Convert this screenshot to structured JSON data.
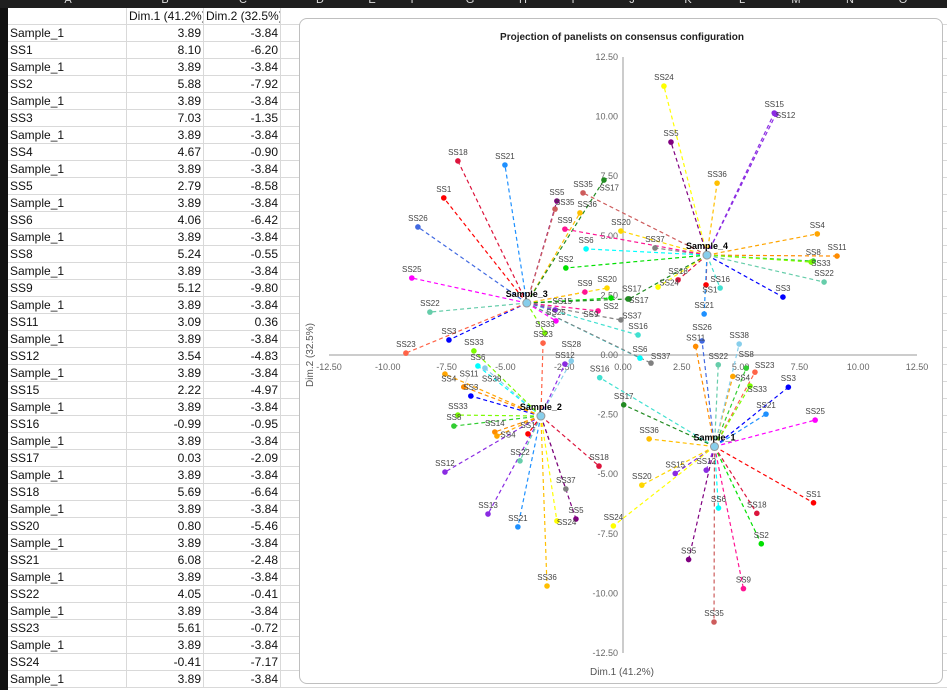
{
  "columns": [
    "A",
    "B",
    "C",
    "D",
    "E",
    "F",
    "G",
    "H",
    "I",
    "J",
    "K",
    "L",
    "M",
    "N",
    "O"
  ],
  "table": {
    "headers": [
      "",
      "Dim.1 (41.2%)",
      "Dim.2 (32.5%)"
    ],
    "rows": [
      [
        "Sample_1",
        "3.89",
        "-3.84"
      ],
      [
        "SS1",
        "8.10",
        "-6.20"
      ],
      [
        "Sample_1",
        "3.89",
        "-3.84"
      ],
      [
        "SS2",
        "5.88",
        "-7.92"
      ],
      [
        "Sample_1",
        "3.89",
        "-3.84"
      ],
      [
        "SS3",
        "7.03",
        "-1.35"
      ],
      [
        "Sample_1",
        "3.89",
        "-3.84"
      ],
      [
        "SS4",
        "4.67",
        "-0.90"
      ],
      [
        "Sample_1",
        "3.89",
        "-3.84"
      ],
      [
        "SS5",
        "2.79",
        "-8.58"
      ],
      [
        "Sample_1",
        "3.89",
        "-3.84"
      ],
      [
        "SS6",
        "4.06",
        "-6.42"
      ],
      [
        "Sample_1",
        "3.89",
        "-3.84"
      ],
      [
        "SS8",
        "5.24",
        "-0.55"
      ],
      [
        "Sample_1",
        "3.89",
        "-3.84"
      ],
      [
        "SS9",
        "5.12",
        "-9.80"
      ],
      [
        "Sample_1",
        "3.89",
        "-3.84"
      ],
      [
        "SS11",
        "3.09",
        "0.36"
      ],
      [
        "Sample_1",
        "3.89",
        "-3.84"
      ],
      [
        "SS12",
        "3.54",
        "-4.83"
      ],
      [
        "Sample_1",
        "3.89",
        "-3.84"
      ],
      [
        "SS15",
        "2.22",
        "-4.97"
      ],
      [
        "Sample_1",
        "3.89",
        "-3.84"
      ],
      [
        "SS16",
        "-0.99",
        "-0.95"
      ],
      [
        "Sample_1",
        "3.89",
        "-3.84"
      ],
      [
        "SS17",
        "0.03",
        "-2.09"
      ],
      [
        "Sample_1",
        "3.89",
        "-3.84"
      ],
      [
        "SS18",
        "5.69",
        "-6.64"
      ],
      [
        "Sample_1",
        "3.89",
        "-3.84"
      ],
      [
        "SS20",
        "0.80",
        "-5.46"
      ],
      [
        "Sample_1",
        "3.89",
        "-3.84"
      ],
      [
        "SS21",
        "6.08",
        "-2.48"
      ],
      [
        "Sample_1",
        "3.89",
        "-3.84"
      ],
      [
        "SS22",
        "4.05",
        "-0.41"
      ],
      [
        "Sample_1",
        "3.89",
        "-3.84"
      ],
      [
        "SS23",
        "5.61",
        "-0.72"
      ],
      [
        "Sample_1",
        "3.89",
        "-3.84"
      ],
      [
        "SS24",
        "-0.41",
        "-7.17"
      ],
      [
        "Sample_1",
        "3.89",
        "-3.84"
      ]
    ]
  },
  "chart_data": {
    "type": "scatter",
    "title": "Projection of panelists on consensus configuration",
    "xlabel": "Dim.1 (41.2%)",
    "ylabel": "Dim.2 (32.5%)",
    "xlim": [
      -12.5,
      12.5
    ],
    "ylim": [
      -12.5,
      12.5
    ],
    "ticks": [
      "-12.50",
      "-10.00",
      "-7.50",
      "-5.00",
      "-2.50",
      "0.00",
      "2.50",
      "5.00",
      "7.50",
      "10.00",
      "12.50"
    ],
    "grid": false,
    "colors": {
      "SS1": "#ff0000",
      "SS2": "#00e000",
      "SS3": "#0000ff",
      "SS4": "#ffa500",
      "SS5": "#800080",
      "SS6": "#00ffff",
      "SS8": "#32cd32",
      "SS9": "#ff1493",
      "SS11": "#ff8c00",
      "SS12": "#8a2be2",
      "SS13": "#8a2be2",
      "SS14": "#ff8c00",
      "SS15": "#8a2be2",
      "SS16": "#40e0d0",
      "SS17": "#228b22",
      "SS18": "#dc143c",
      "SS20": "#ffd700",
      "SS21": "#1e90ff",
      "SS22": "#66cdaa",
      "SS23": "#ff6347",
      "SS24": "#ffff00",
      "SS25": "#ff00ff",
      "SS26": "#4169e1",
      "SS28": "#87ceeb",
      "SS33": "#7cfc00",
      "SS35": "#cd5c5c",
      "SS36": "#ffbf00",
      "SS37": "#808080",
      "SS38": "#87ceeb"
    },
    "samples": [
      {
        "name": "Sample_1",
        "x": 3.89,
        "y": -3.84,
        "points": [
          [
            "SS1",
            8.1,
            -6.2
          ],
          [
            "SS2",
            5.88,
            -7.92
          ],
          [
            "SS3",
            7.03,
            -1.35
          ],
          [
            "SS4",
            4.67,
            -0.9
          ],
          [
            "SS5",
            2.79,
            -8.58
          ],
          [
            "SS6",
            4.06,
            -6.42
          ],
          [
            "SS8",
            5.24,
            -0.55
          ],
          [
            "SS9",
            5.12,
            -9.8
          ],
          [
            "SS11",
            3.09,
            0.36
          ],
          [
            "SS12",
            3.54,
            -4.83
          ],
          [
            "SS15",
            2.22,
            -4.97
          ],
          [
            "SS16",
            -0.99,
            -0.95
          ],
          [
            "SS17",
            0.03,
            -2.09
          ],
          [
            "SS18",
            5.69,
            -6.64
          ],
          [
            "SS20",
            0.8,
            -5.46
          ],
          [
            "SS21",
            6.08,
            -2.48
          ],
          [
            "SS22",
            4.05,
            -0.41
          ],
          [
            "SS23",
            5.61,
            -0.72
          ],
          [
            "SS24",
            -0.41,
            -7.17
          ],
          [
            "SS25",
            8.17,
            -2.73
          ],
          [
            "SS35",
            3.87,
            -11.2
          ],
          [
            "SS36",
            1.11,
            -3.52
          ],
          [
            "SS38",
            4.94,
            0.46
          ],
          [
            "SS26",
            3.36,
            0.59
          ],
          [
            "SS33",
            5.4,
            -1.3
          ]
        ]
      },
      {
        "name": "Sample_2",
        "x": -3.49,
        "y": -2.56,
        "points": [
          [
            "SS12",
            -7.57,
            -4.91
          ],
          [
            "SS13",
            -5.74,
            -6.67
          ],
          [
            "SS21",
            -4.47,
            -7.21
          ],
          [
            "SS22",
            -4.38,
            -4.44
          ],
          [
            "SS1",
            -4.04,
            -3.31
          ],
          [
            "SS8",
            -7.19,
            -2.98
          ],
          [
            "SS14",
            -5.45,
            -3.23
          ],
          [
            "SS4",
            -5.36,
            -3.4
          ],
          [
            "SS33",
            -7.02,
            -2.52
          ],
          [
            "SS3",
            -6.47,
            -1.72
          ],
          [
            "SS11",
            -6.77,
            -1.34
          ],
          [
            "SS4",
            -7.57,
            -0.8
          ],
          [
            "SS6",
            -6.17,
            -0.46
          ],
          [
            "SS38",
            -5.87,
            -0.55
          ],
          [
            "SS33",
            -6.34,
            0.17
          ],
          [
            "SS18",
            -1.02,
            -4.66
          ],
          [
            "SS37",
            -2.43,
            -5.62
          ],
          [
            "SS5",
            -2.0,
            -6.88
          ],
          [
            "SS24",
            -2.81,
            -6.96
          ],
          [
            "SS36",
            -3.23,
            -9.69
          ],
          [
            "SS12",
            -2.47,
            -0.38
          ],
          [
            "SS28",
            -2.2,
            -0.25
          ],
          [
            "SS23",
            -3.4,
            0.5
          ]
        ]
      },
      {
        "name": "Sample_3",
        "x": -4.09,
        "y": 2.18,
        "points": [
          [
            "SS18",
            -7.02,
            8.14
          ],
          [
            "SS21",
            -5.02,
            7.97
          ],
          [
            "SS1",
            -7.62,
            6.59
          ],
          [
            "SS26",
            -8.72,
            5.37
          ],
          [
            "SS25",
            -8.98,
            3.23
          ],
          [
            "SS22",
            -8.21,
            1.8
          ],
          [
            "SS3",
            -7.4,
            0.63
          ],
          [
            "SS23",
            -9.23,
            0.08
          ],
          [
            "SS5",
            -2.81,
            6.46
          ],
          [
            "SS35",
            -2.89,
            6.12
          ],
          [
            "SS36",
            -1.83,
            5.96
          ],
          [
            "SS17",
            -0.81,
            7.34
          ],
          [
            "SS9",
            -1.62,
            2.64
          ],
          [
            "SS20",
            -0.68,
            2.81
          ],
          [
            "SS2",
            -0.51,
            2.39
          ],
          [
            "SS17",
            0.21,
            2.35
          ],
          [
            "SS9",
            -1.06,
            1.85
          ],
          [
            "SS37",
            -0.09,
            1.47
          ],
          [
            "SS16",
            0.64,
            0.84
          ],
          [
            "SS6",
            0.72,
            -0.13
          ],
          [
            "SS37",
            1.19,
            -0.34
          ],
          [
            "SS15",
            -2.89,
            1.89
          ],
          [
            "SS25",
            -2.85,
            1.43
          ],
          [
            "SS33",
            -3.32,
            0.92
          ]
        ]
      },
      {
        "name": "Sample_4",
        "x": 3.57,
        "y": 4.19,
        "points": [
          [
            "SS24",
            1.74,
            11.28
          ],
          [
            "SS5",
            2.04,
            8.93
          ],
          [
            "SS36",
            4.0,
            7.21
          ],
          [
            "SS15",
            6.43,
            10.15
          ],
          [
            "SS12",
            6.5,
            10.1
          ],
          [
            "SS4",
            8.26,
            5.08
          ],
          [
            "SS11",
            9.1,
            4.15
          ],
          [
            "SS8",
            8.09,
            3.94
          ],
          [
            "SS33",
            8.0,
            3.9
          ],
          [
            "SS22",
            8.55,
            3.06
          ],
          [
            "SS3",
            6.8,
            2.43
          ],
          [
            "SS16",
            4.13,
            2.81
          ],
          [
            "SS1",
            3.53,
            2.94
          ],
          [
            "SS18",
            2.34,
            3.15
          ],
          [
            "SS24",
            1.49,
            2.85
          ],
          [
            "SS17",
            0.26,
            2.35
          ],
          [
            "SS37",
            1.36,
            4.49
          ],
          [
            "SS20",
            -0.09,
            5.2
          ],
          [
            "SS6",
            -1.57,
            4.45
          ],
          [
            "SS2",
            -2.43,
            3.65
          ],
          [
            "SS9",
            -2.47,
            5.28
          ],
          [
            "SS35",
            -1.7,
            6.8
          ],
          [
            "SS21",
            3.45,
            1.72
          ]
        ]
      }
    ]
  }
}
